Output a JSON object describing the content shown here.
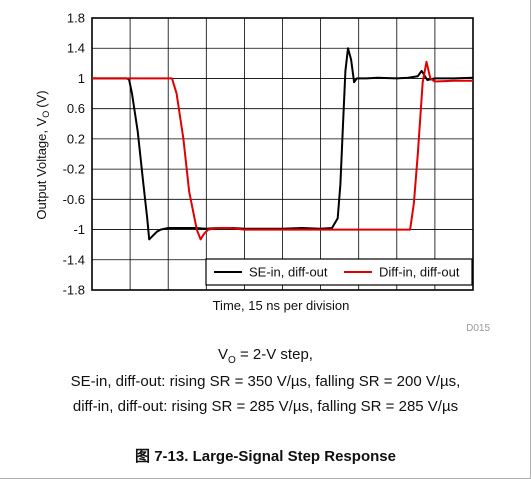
{
  "chart_data": {
    "type": "line",
    "xlabel": "Time, 15 ns per division",
    "ylabel": "Output Voltage, V",
    "ylabel_subscript": "O",
    "ylabel_unit": "(V)",
    "xlim": [
      0,
      10
    ],
    "ylim": [
      -1.8,
      1.8
    ],
    "yticks": [
      "1.8",
      "1.4",
      "1",
      "0.6",
      "0.2",
      "-0.2",
      "-0.6",
      "-1",
      "-1.4",
      "-1.8"
    ],
    "ytick_values": [
      1.8,
      1.4,
      1.0,
      0.6,
      0.2,
      -0.2,
      -0.6,
      -1.0,
      -1.4,
      -1.8
    ],
    "grid": true,
    "legend_position": "bottom-right",
    "doc_code": "D015",
    "series": [
      {
        "name": "SE-in, diff-out",
        "color": "#000000",
        "x": [
          0,
          0.9,
          0.97,
          1.05,
          1.2,
          1.35,
          1.45,
          1.5,
          1.6,
          1.7,
          1.8,
          2.0,
          2.3,
          2.7,
          3.0,
          3.3,
          3.7,
          4.0,
          4.5,
          5.0,
          5.5,
          6.0,
          6.3,
          6.45,
          6.52,
          6.58,
          6.65,
          6.72,
          6.8,
          6.88,
          6.95,
          7.05,
          7.2,
          7.5,
          8.0,
          8.3,
          8.55,
          8.65,
          8.8,
          9.0,
          9.5,
          10
        ],
        "y": [
          1.0,
          1.0,
          0.99,
          0.8,
          0.3,
          -0.4,
          -0.85,
          -1.13,
          -1.08,
          -1.03,
          -1.0,
          -0.98,
          -0.98,
          -0.98,
          -0.99,
          -0.98,
          -0.98,
          -0.99,
          -0.99,
          -0.99,
          -0.98,
          -0.99,
          -0.98,
          -0.85,
          -0.4,
          0.3,
          1.1,
          1.4,
          1.25,
          0.95,
          1.0,
          1.0,
          1.0,
          1.01,
          1.0,
          1.01,
          1.03,
          1.1,
          0.98,
          1.0,
          1.0,
          1.01
        ]
      },
      {
        "name": "Diff-in, diff-out",
        "color": "#e00000",
        "x": [
          0,
          1.5,
          2.1,
          2.22,
          2.4,
          2.55,
          2.75,
          2.85,
          2.95,
          3.05,
          3.3,
          3.6,
          4.0,
          5.0,
          6.0,
          7.0,
          8.0,
          8.35,
          8.45,
          8.55,
          8.68,
          8.78,
          8.88,
          9.0,
          9.5,
          10
        ],
        "y": [
          1.0,
          1.0,
          1.0,
          0.8,
          0.2,
          -0.5,
          -1.0,
          -1.13,
          -1.05,
          -1.0,
          -0.98,
          -0.98,
          -1.0,
          -1.0,
          -1.0,
          -1.0,
          -1.0,
          -1.0,
          -0.65,
          0.0,
          0.95,
          1.22,
          1.0,
          0.96,
          0.97,
          0.97
        ]
      }
    ]
  },
  "captions": {
    "step_prefix": "V",
    "step_subscript": "O",
    "step_suffix": " = 2-V step,",
    "se_line": "SE-in, diff-out: rising SR = 350 V/µs, falling SR = 200 V/µs,",
    "diff_line": "diff-in, diff-out: rising SR = 285 V/µs, falling SR = 285 V/µs"
  },
  "figure_title": "图 7-13. Large-Signal Step Response"
}
